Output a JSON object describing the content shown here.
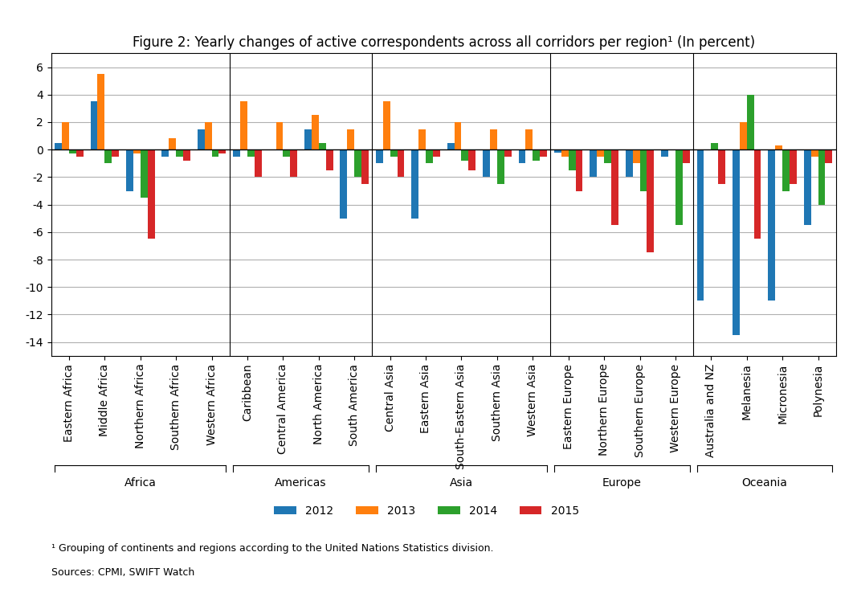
{
  "chart_data": {
    "type": "bar",
    "title": "Figure 2: Yearly changes of active correspondents across all corridors per region¹ (In percent)",
    "footnote": "¹ Grouping of continents and regions according to the United Nations Statistics division.",
    "source": "Sources: CPMI, SWIFT Watch",
    "categories": [
      "Eastern Africa",
      "Middle Africa",
      "Northern Africa",
      "Southern Africa",
      "Western Africa",
      "Caribbean",
      "Central America",
      "North America",
      "South America",
      "Central Asia",
      "Eastern Asia",
      "South-Eastern Asia",
      "Southern Asia",
      "Western Asia",
      "Eastern Europe",
      "Northern Europe",
      "Southern Europe",
      "Western Europe",
      "Australia and NZ",
      "Melanesia",
      "Micronesia",
      "Polynesia"
    ],
    "groups": [
      {
        "name": "Africa",
        "categories": [
          "Eastern Africa",
          "Middle Africa",
          "Northern Africa",
          "Southern Africa",
          "Western Africa"
        ]
      },
      {
        "name": "Americas",
        "categories": [
          "Caribbean",
          "Central America",
          "North America",
          "South America"
        ]
      },
      {
        "name": "Asia",
        "categories": [
          "Central Asia",
          "Eastern Asia",
          "South-Eastern Asia",
          "Southern Asia",
          "Western Asia"
        ]
      },
      {
        "name": "Europe",
        "categories": [
          "Eastern Europe",
          "Northern Europe",
          "Southern Europe",
          "Western Europe"
        ]
      },
      {
        "name": "Oceania",
        "categories": [
          "Australia and NZ",
          "Melanesia",
          "Micronesia",
          "Polynesia"
        ]
      }
    ],
    "series": [
      {
        "name": "2012",
        "values": [
          0.5,
          3.5,
          -3.0,
          -0.5,
          1.5,
          -0.5,
          0.0,
          1.5,
          -5.0,
          -1.0,
          -5.0,
          0.5,
          -2.0,
          -1.0,
          -0.2,
          -2.0,
          -2.0,
          -0.5,
          -11.0,
          -13.5,
          -11.0,
          -5.5
        ]
      },
      {
        "name": "2013",
        "values": [
          2.0,
          5.5,
          -0.3,
          0.8,
          2.0,
          3.5,
          2.0,
          2.5,
          1.5,
          3.5,
          1.5,
          2.0,
          1.5,
          1.5,
          -0.5,
          -0.5,
          -1.0,
          0.0,
          0.0,
          2.0,
          0.3,
          -0.5
        ]
      },
      {
        "name": "2014",
        "values": [
          -0.3,
          -1.0,
          -3.5,
          -0.5,
          -0.5,
          -0.5,
          -0.5,
          0.5,
          -2.0,
          -0.5,
          -1.0,
          -0.8,
          -2.5,
          -0.8,
          -1.5,
          -1.0,
          -3.0,
          -5.5,
          0.5,
          4.0,
          -3.0,
          -4.0
        ]
      },
      {
        "name": "2015",
        "values": [
          -0.5,
          -0.5,
          -6.5,
          -0.8,
          -0.3,
          -2.0,
          -2.0,
          -1.5,
          -2.5,
          -2.0,
          -0.5,
          -1.5,
          -0.5,
          -0.5,
          -3.0,
          -5.5,
          -7.5,
          -1.0,
          -2.5,
          -6.5,
          -2.5,
          -1.0
        ]
      }
    ],
    "ylim": [
      -15,
      7
    ],
    "yticks": [
      -14,
      -12,
      -10,
      -8,
      -6,
      -4,
      -2,
      0,
      2,
      4,
      6
    ],
    "grid": true,
    "legend": "upper center"
  }
}
